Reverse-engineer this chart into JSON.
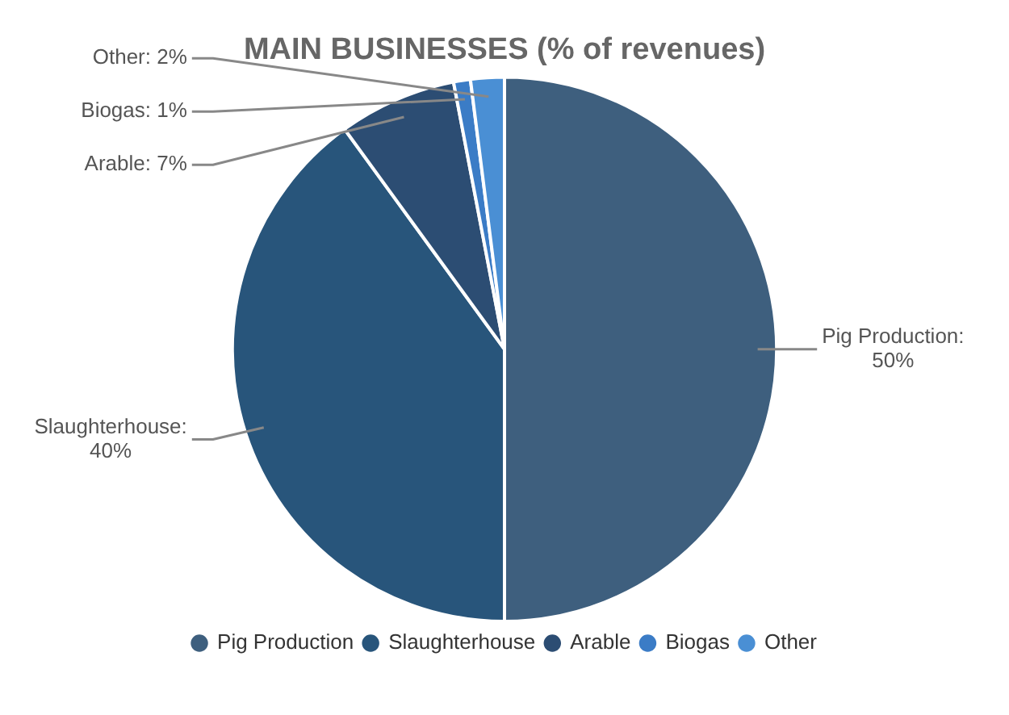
{
  "chart_data": {
    "type": "pie",
    "title": "MAIN BUSINESSES (% of revenues)",
    "categories": [
      "Pig Production",
      "Slaughterhouse",
      "Arable",
      "Biogas",
      "Other"
    ],
    "values": [
      50,
      40,
      7,
      1,
      2
    ],
    "colors": [
      "#3e5f7e",
      "#28557b",
      "#2c4d73",
      "#3b7cc6",
      "#4a8fd4"
    ],
    "value_labels": [
      "Pig Production: 50%",
      "Slaughterhouse: 40%",
      "Arable: 7%",
      "Biogas: 1%",
      "Other: 2%"
    ],
    "legend": "bottom"
  }
}
